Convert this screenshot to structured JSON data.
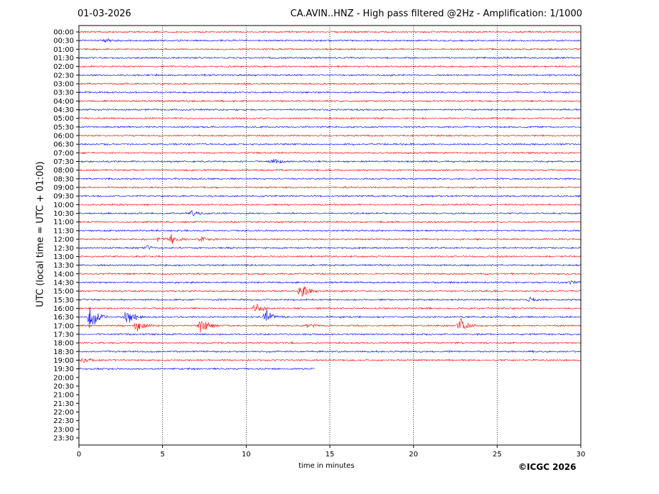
{
  "header": {
    "date": "01-03-2026",
    "title": "CA.AVIN..HNZ - High pass filtered @2Hz - Amplification: 1/1000"
  },
  "footer": {
    "credit": "©ICGC 2026"
  },
  "chart_data": {
    "type": "line",
    "title": "CA.AVIN..HNZ - High pass filtered @2Hz - Amplification: 1/1000",
    "xlabel": "time in minutes",
    "ylabel": "UTC (local time = UTC + 01:00)",
    "xlim": [
      0,
      30
    ],
    "xticks": [
      0,
      5,
      10,
      15,
      20,
      25,
      30
    ],
    "grid": "vertical dotted at 5-minute ticks",
    "row_labels": [
      "00:00",
      "00:30",
      "01:00",
      "01:30",
      "02:00",
      "02:30",
      "03:00",
      "03:30",
      "04:00",
      "04:30",
      "05:00",
      "05:30",
      "06:00",
      "06:30",
      "07:00",
      "07:30",
      "08:00",
      "08:30",
      "09:00",
      "09:30",
      "10:00",
      "10:30",
      "11:00",
      "11:30",
      "12:00",
      "12:30",
      "13:00",
      "13:30",
      "14:00",
      "14:30",
      "15:00",
      "15:30",
      "16:00",
      "16:30",
      "17:00",
      "17:30",
      "18:00",
      "18:30",
      "19:00",
      "19:30",
      "20:00",
      "20:30",
      "21:00",
      "21:30",
      "22:00",
      "22:30",
      "23:00",
      "23:30"
    ],
    "trace_colors": [
      "#ff0000",
      "#0000ff"
    ],
    "last_trace": {
      "row": "19:30",
      "end_minute": 14.1
    },
    "events": [
      {
        "row": "00:30",
        "minute": 1.6,
        "amp": 0.2
      },
      {
        "row": "07:30",
        "minute": 11.6,
        "amp": 0.35
      },
      {
        "row": "10:30",
        "minute": 6.8,
        "amp": 0.3
      },
      {
        "row": "12:00",
        "minute": 5.5,
        "amp": 0.55
      },
      {
        "row": "12:00",
        "minute": 4.7,
        "amp": 0.25
      },
      {
        "row": "12:00",
        "minute": 7.3,
        "amp": 0.25
      },
      {
        "row": "12:30",
        "minute": 4.1,
        "amp": 0.25
      },
      {
        "row": "15:00",
        "minute": 13.3,
        "amp": 1.0
      },
      {
        "row": "15:30",
        "minute": 27.0,
        "amp": 0.3
      },
      {
        "row": "16:00",
        "minute": 10.6,
        "amp": 1.0
      },
      {
        "row": "16:30",
        "minute": 0.7,
        "amp": 1.8
      },
      {
        "row": "16:30",
        "minute": 2.9,
        "amp": 1.4
      },
      {
        "row": "16:30",
        "minute": 11.2,
        "amp": 0.9
      },
      {
        "row": "17:00",
        "minute": 3.5,
        "amp": 0.9
      },
      {
        "row": "17:00",
        "minute": 7.3,
        "amp": 1.0
      },
      {
        "row": "17:00",
        "minute": 22.8,
        "amp": 1.0
      },
      {
        "row": "17:00",
        "minute": 13.7,
        "amp": 0.2
      },
      {
        "row": "19:00",
        "minute": 0.3,
        "amp": 0.3
      },
      {
        "row": "14:30",
        "minute": 29.4,
        "amp": 0.25
      }
    ]
  }
}
